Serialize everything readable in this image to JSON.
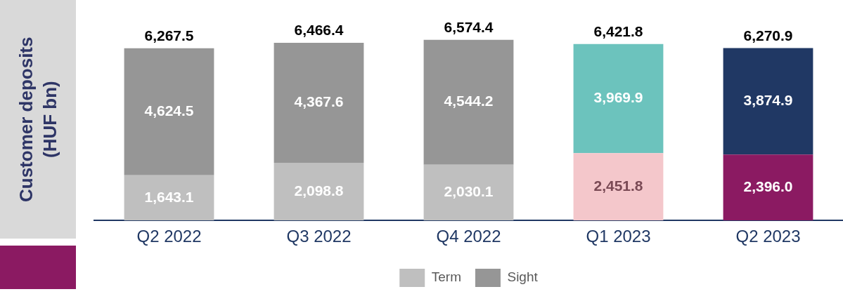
{
  "chart_data": {
    "type": "bar",
    "ylabel": "Customer deposits (HUF bn)",
    "stacked": true,
    "legend": "bottom",
    "grid": false,
    "categories": [
      "Q2 2022",
      "Q3 2022",
      "Q4 2022",
      "Q1 2023",
      "Q2 2023"
    ],
    "series": [
      {
        "name": "Term",
        "color": "#bfbfbf",
        "colors": [
          "#bfbfbf",
          "#bfbfbf",
          "#bfbfbf",
          "#f4c7cb",
          "#8b1a62"
        ],
        "values": [
          1643.1,
          2098.8,
          2030.1,
          2451.8,
          2396.0
        ],
        "value_labels": [
          "1,643.1",
          "2,098.8",
          "2,030.1",
          "2,451.8",
          "2,396.0"
        ]
      },
      {
        "name": "Sight",
        "color": "#969696",
        "colors": [
          "#969696",
          "#969696",
          "#969696",
          "#6cc3bd",
          "#203864"
        ],
        "values": [
          4624.5,
          4367.6,
          4544.2,
          3969.9,
          3874.9
        ],
        "value_labels": [
          "4,624.5",
          "4,367.6",
          "4,544.2",
          "3,969.9",
          "3,874.9"
        ]
      }
    ],
    "totals": [
      "6,267.5",
      "6,466.4",
      "6,574.4",
      "6,421.8",
      "6,270.9"
    ]
  }
}
